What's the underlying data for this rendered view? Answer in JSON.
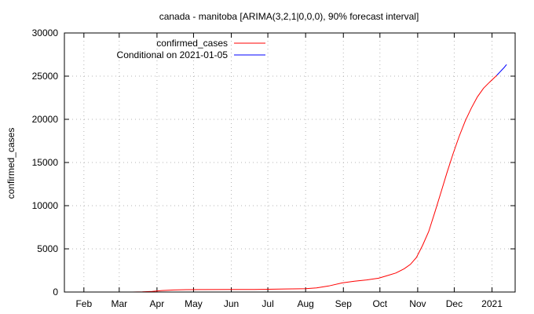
{
  "chart_data": {
    "type": "line",
    "title": "canada - manitoba [ARIMA(3,2,1|0,0,0), 90% forecast interval]",
    "xlabel": "",
    "ylabel": "confirmed_cases",
    "x_range": [
      "2020-01-16",
      "2021-01-20"
    ],
    "ylim": [
      0,
      30000
    ],
    "y_ticks": [
      0,
      5000,
      10000,
      15000,
      20000,
      25000,
      30000
    ],
    "x_ticks": [
      {
        "date": "2020-02-01",
        "label": "Feb"
      },
      {
        "date": "2020-03-01",
        "label": "Mar"
      },
      {
        "date": "2020-04-01",
        "label": "Apr"
      },
      {
        "date": "2020-05-01",
        "label": "May"
      },
      {
        "date": "2020-06-01",
        "label": "Jun"
      },
      {
        "date": "2020-07-01",
        "label": "Jul"
      },
      {
        "date": "2020-08-01",
        "label": "Aug"
      },
      {
        "date": "2020-09-01",
        "label": "Sep"
      },
      {
        "date": "2020-10-01",
        "label": "Oct"
      },
      {
        "date": "2020-11-01",
        "label": "Nov"
      },
      {
        "date": "2020-12-01",
        "label": "Dec"
      },
      {
        "date": "2021-01-01",
        "label": "2021"
      }
    ],
    "grid": true,
    "legend_position": "top-left",
    "series": [
      {
        "name": "confirmed_cases",
        "color": "#ff0000",
        "points": [
          [
            "2020-03-12",
            0
          ],
          [
            "2020-03-20",
            15
          ],
          [
            "2020-03-28",
            60
          ],
          [
            "2020-04-05",
            170
          ],
          [
            "2020-04-15",
            240
          ],
          [
            "2020-04-25",
            270
          ],
          [
            "2020-05-10",
            285
          ],
          [
            "2020-06-01",
            295
          ],
          [
            "2020-06-20",
            300
          ],
          [
            "2020-07-01",
            320
          ],
          [
            "2020-07-15",
            350
          ],
          [
            "2020-08-01",
            380
          ],
          [
            "2020-08-10",
            480
          ],
          [
            "2020-08-20",
            700
          ],
          [
            "2020-08-31",
            1050
          ],
          [
            "2020-09-10",
            1250
          ],
          [
            "2020-09-20",
            1400
          ],
          [
            "2020-09-30",
            1600
          ],
          [
            "2020-10-07",
            1900
          ],
          [
            "2020-10-14",
            2200
          ],
          [
            "2020-10-21",
            2700
          ],
          [
            "2020-10-26",
            3200
          ],
          [
            "2020-10-31",
            4000
          ],
          [
            "2020-11-05",
            5400
          ],
          [
            "2020-11-10",
            7000
          ],
          [
            "2020-11-15",
            9200
          ],
          [
            "2020-11-20",
            11500
          ],
          [
            "2020-11-25",
            13800
          ],
          [
            "2020-11-30",
            16000
          ],
          [
            "2020-12-05",
            18000
          ],
          [
            "2020-12-10",
            19800
          ],
          [
            "2020-12-15",
            21300
          ],
          [
            "2020-12-20",
            22600
          ],
          [
            "2020-12-25",
            23600
          ],
          [
            "2020-12-30",
            24300
          ],
          [
            "2021-01-05",
            25100
          ]
        ]
      },
      {
        "name": "Conditional on 2021-01-05",
        "color": "#0000ff",
        "points": [
          [
            "2021-01-05",
            25100
          ],
          [
            "2021-01-08",
            25550
          ],
          [
            "2021-01-11",
            26000
          ],
          [
            "2021-01-13",
            26350
          ]
        ]
      }
    ]
  }
}
